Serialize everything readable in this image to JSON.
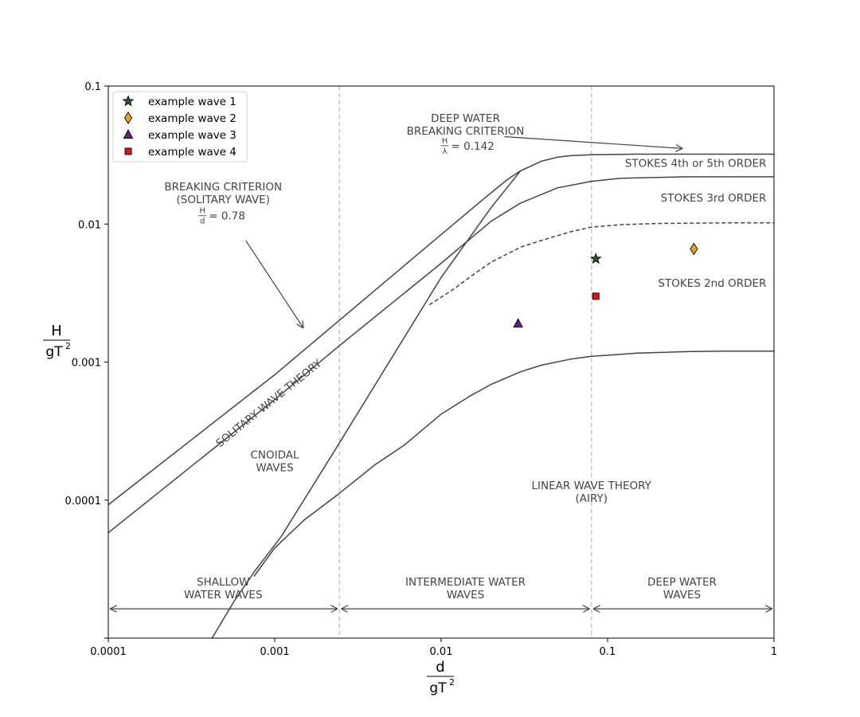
{
  "chart_data": {
    "type": "scatter",
    "title": "",
    "x_scale": "log",
    "y_scale": "log",
    "xlim": [
      0.0001,
      1
    ],
    "ylim": [
      1e-05,
      0.1
    ],
    "grid": false,
    "legend_position": "top-left",
    "xlabel": {
      "numerator": "d",
      "denominator": "gT",
      "superscript": "2"
    },
    "ylabel": {
      "numerator": "H",
      "denominator": "gT",
      "superscript": "2"
    },
    "x_ticks": [
      {
        "value": 0.0001,
        "label": "0.0001"
      },
      {
        "value": 0.001,
        "label": "0.001"
      },
      {
        "value": 0.01,
        "label": "0.01"
      },
      {
        "value": 0.1,
        "label": "0.1"
      },
      {
        "value": 1,
        "label": "1"
      }
    ],
    "y_ticks": [
      {
        "value": 0.1,
        "label": "0.1"
      },
      {
        "value": 0.01,
        "label": "0.01"
      },
      {
        "value": 0.001,
        "label": "0.001"
      },
      {
        "value": 0.0001,
        "label": "0.0001"
      }
    ],
    "vertical_lines": [
      {
        "name": "shallow-intermediate-boundary",
        "x": 0.00245,
        "style": "dashed",
        "color": "#c8c8c8"
      },
      {
        "name": "intermediate-deep-boundary",
        "x": 0.08,
        "style": "dashed",
        "color": "#c8c8c8"
      }
    ],
    "curves": [
      {
        "name": "solitary-breaking-limit",
        "style": "solid",
        "color": "#444444",
        "points": [
          [
            0.0001,
            9.25e-05
          ],
          [
            0.001,
            0.00081
          ],
          [
            0.01,
            0.0084
          ],
          [
            0.018,
            0.0152
          ],
          [
            0.025,
            0.021
          ],
          [
            0.03,
            0.0243
          ],
          [
            0.04,
            0.0285
          ],
          [
            0.05,
            0.0305
          ],
          [
            0.06,
            0.0313
          ],
          [
            0.08,
            0.0318
          ],
          [
            0.15,
            0.0321
          ],
          [
            0.5,
            0.0321
          ],
          [
            1,
            0.0321
          ]
        ]
      },
      {
        "name": "solitary-wave-theory-limit",
        "style": "solid",
        "color": "#444444",
        "points": [
          [
            0.0001,
            5.8e-05
          ],
          [
            0.001,
            0.000535
          ],
          [
            0.0024,
            0.00129
          ],
          [
            0.01,
            0.0052
          ],
          [
            0.02,
            0.0105
          ],
          [
            0.03,
            0.0142
          ],
          [
            0.05,
            0.0183
          ],
          [
            0.08,
            0.0204
          ],
          [
            0.12,
            0.0215
          ],
          [
            0.3,
            0.022
          ],
          [
            1,
            0.022
          ]
        ]
      },
      {
        "name": "stokes-3rd-order-limit",
        "style": "dashed",
        "color": "#444444",
        "points": [
          [
            0.0085,
            0.0026
          ],
          [
            0.012,
            0.0034
          ],
          [
            0.016,
            0.0044
          ],
          [
            0.02,
            0.0053
          ],
          [
            0.03,
            0.0068
          ],
          [
            0.04,
            0.0076
          ],
          [
            0.06,
            0.0088
          ],
          [
            0.08,
            0.0095
          ],
          [
            0.12,
            0.0099
          ],
          [
            0.2,
            0.0101
          ],
          [
            0.5,
            0.0102
          ],
          [
            1,
            0.0102
          ]
        ]
      },
      {
        "name": "ursell-limit-line",
        "style": "solid",
        "color": "#444444",
        "points": [
          [
            0.00042,
            1e-05
          ],
          [
            0.00057,
            1.85e-05
          ],
          [
            0.00075,
            3e-05
          ],
          [
            0.0011,
            5.5e-05
          ],
          [
            0.0024,
            0.00025
          ],
          [
            0.01,
            0.0041
          ],
          [
            0.02,
            0.0132
          ],
          [
            0.03,
            0.0243
          ]
        ]
      },
      {
        "name": "linear-wave-theory-limit",
        "style": "solid",
        "color": "#444444",
        "points": [
          [
            0.00075,
            2.8e-05
          ],
          [
            0.001,
            4.5e-05
          ],
          [
            0.0015,
            7.16e-05
          ],
          [
            0.0024,
            0.00011
          ],
          [
            0.004,
            0.00018
          ],
          [
            0.006,
            0.00025
          ],
          [
            0.01,
            0.00042
          ],
          [
            0.015,
            0.00057
          ],
          [
            0.02,
            0.00069
          ],
          [
            0.03,
            0.00085
          ],
          [
            0.04,
            0.00095
          ],
          [
            0.06,
            0.00105
          ],
          [
            0.08,
            0.0011
          ],
          [
            0.15,
            0.00116
          ],
          [
            0.3,
            0.00119
          ],
          [
            0.5,
            0.0012
          ],
          [
            1,
            0.0012
          ]
        ]
      }
    ],
    "series": [
      {
        "name": "example wave 1",
        "marker": "star",
        "color": "#1f5f2a",
        "x": [
          0.085
        ],
        "y": [
          0.0056
        ]
      },
      {
        "name": "example wave 2",
        "marker": "diamond",
        "color": "#f2a20f",
        "x": [
          0.33
        ],
        "y": [
          0.0066
        ]
      },
      {
        "name": "example wave 3",
        "marker": "triangle",
        "color": "#6a1d8a",
        "x": [
          0.029
        ],
        "y": [
          0.0019
        ]
      },
      {
        "name": "example wave 4",
        "marker": "square",
        "color": "#e81010",
        "x": [
          0.085
        ],
        "y": [
          0.003
        ]
      }
    ],
    "region_labels": [
      {
        "name": "deep-water-breaking-label",
        "lines": [
          "DEEP WATER",
          "BREAKING CRITERION"
        ],
        "x": 0.014,
        "y": 0.055
      },
      {
        "name": "stokes-45-label",
        "lines": [
          "STOKES 4th or 5th ORDER"
        ],
        "x": 0.9,
        "y": 0.026,
        "anchor": "end"
      },
      {
        "name": "stokes-3-label",
        "lines": [
          "STOKES 3rd ORDER"
        ],
        "x": 0.9,
        "y": 0.0146,
        "anchor": "end"
      },
      {
        "name": "stokes-2-label",
        "lines": [
          "STOKES 2nd ORDER"
        ],
        "x": 0.9,
        "y": 0.0035,
        "anchor": "end"
      },
      {
        "name": "solitary-breaking-label",
        "lines": [
          "BREAKING CRITERION",
          "(SOLITARY WAVE)"
        ],
        "x": 0.00049,
        "y": 0.0175
      },
      {
        "name": "cnoidal-label",
        "lines": [
          "CNOIDAL",
          "WAVES"
        ],
        "x": 0.001,
        "y": 0.0002
      },
      {
        "name": "linear-theory-label",
        "lines": [
          "LINEAR WAVE THEORY",
          "(AIRY)"
        ],
        "x": 0.08,
        "y": 0.00012
      },
      {
        "name": "shallow-waves-label",
        "lines": [
          "SHALLOW",
          "WATER WAVES"
        ],
        "x": 0.00049,
        "y": 2.4e-05
      },
      {
        "name": "intermediate-waves-label",
        "lines": [
          "INTERMEDIATE WATER",
          "WAVES"
        ],
        "x": 0.014,
        "y": 2.4e-05
      },
      {
        "name": "deep-waves-label",
        "lines": [
          "DEEP WATER",
          "WAVES"
        ],
        "x": 0.28,
        "y": 2.4e-05
      }
    ],
    "rotated_labels": [
      {
        "name": "solitary-wave-theory-label",
        "text": "SOLITARY WAVE THEORY",
        "x": 0.00095,
        "y": 0.00048,
        "slope_from": [
          0.0001,
          5.8e-05
        ],
        "slope_to": [
          0.0024,
          0.00129
        ]
      }
    ],
    "formulas": [
      {
        "name": "deep-water-formula",
        "numerator": "H",
        "denominator": "λ",
        "rhs": "= 0.142",
        "x": 0.014,
        "y": 0.037
      },
      {
        "name": "solitary-formula",
        "numerator": "H",
        "denominator": "d",
        "rhs": "= 0.78",
        "x": 0.00049,
        "y": 0.0115
      }
    ],
    "annotation_arrows": [
      {
        "name": "deep-water-breaking-arrow",
        "from": [
          0.024,
          0.043
        ],
        "to": [
          0.28,
          0.0353
        ]
      },
      {
        "name": "solitary-breaking-arrow",
        "from": [
          0.00067,
          0.0076
        ],
        "to": [
          0.00148,
          0.00178
        ]
      }
    ],
    "range_arrows": [
      {
        "name": "shallow-range-arrow",
        "x1": 0.0001,
        "x2": 0.00245,
        "y": 1.63e-05
      },
      {
        "name": "intermediate-range-arrow",
        "x1": 0.00245,
        "x2": 0.08,
        "y": 1.63e-05
      },
      {
        "name": "deep-range-arrow",
        "x1": 0.08,
        "x2": 1,
        "y": 1.63e-05
      }
    ]
  }
}
